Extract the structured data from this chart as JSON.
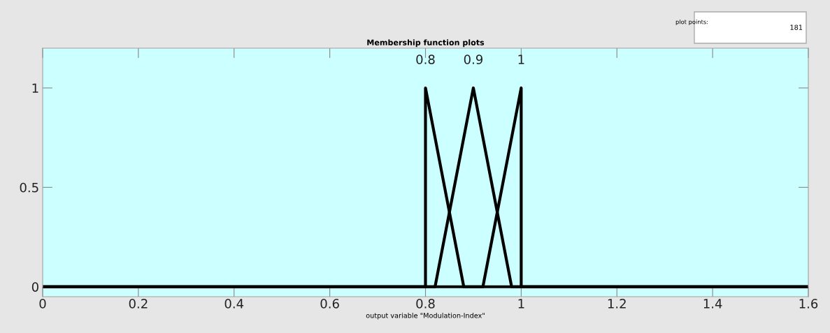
{
  "chart_data": {
    "type": "line",
    "title": "Membership function plots",
    "xlabel": "output variable \"Modulation-Index\"",
    "series": [
      {
        "color": "#000000",
        "x": [
          0,
          0.8,
          0.8,
          0.88,
          1.6
        ],
        "values": [
          0,
          0,
          1,
          0,
          0
        ]
      },
      {
        "color": "#000000",
        "x": [
          0,
          0.82,
          0.9,
          0.98,
          1.6
        ],
        "values": [
          0,
          0,
          1,
          0,
          0
        ]
      },
      {
        "color": "#000000",
        "x": [
          0,
          0.92,
          1,
          1,
          1.6
        ],
        "values": [
          0,
          0,
          1,
          0,
          0
        ]
      }
    ],
    "annotations": [
      {
        "text": "0.8",
        "x": 0.8,
        "y": 1
      },
      {
        "text": "0.9",
        "x": 0.9,
        "y": 1
      },
      {
        "text": "1",
        "x": 1,
        "y": 1
      },
      "plot points:",
      "181"
    ],
    "xlim": [
      0,
      1.6
    ],
    "xticks": [
      0,
      0.2,
      0.4,
      0.6,
      0.8,
      1,
      1.2,
      1.4,
      1.6
    ],
    "ylim": [
      -0.05,
      1.2
    ],
    "yticks": [
      0,
      0.5,
      1
    ],
    "grid": false,
    "legend": false,
    "marker": "none",
    "line_style": "solid"
  }
}
